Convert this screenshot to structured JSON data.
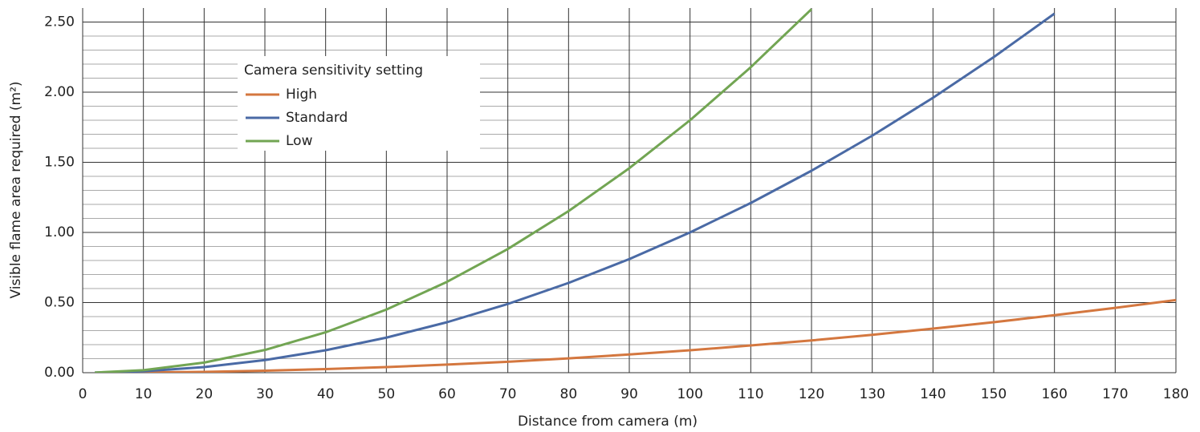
{
  "chart_data": {
    "type": "line",
    "x_label": "Distance from camera (m)",
    "y_label": "Visible flame area required (m²)",
    "legend_title": "Camera sensitivity setting",
    "legend": "upper-left",
    "grid": true,
    "x": [
      2,
      10,
      20,
      30,
      40,
      50,
      60,
      70,
      80,
      90,
      100,
      110,
      120,
      130,
      140,
      150,
      160,
      170,
      180
    ],
    "series": [
      {
        "name": "High",
        "color": "#d4773f",
        "values": [
          0.0001,
          0.002,
          0.006,
          0.014,
          0.026,
          0.04,
          0.058,
          0.078,
          0.102,
          0.13,
          0.16,
          0.194,
          0.23,
          0.27,
          0.314,
          0.36,
          0.41,
          0.462,
          0.518
        ]
      },
      {
        "name": "Standard",
        "color": "#4a6aa5",
        "values": [
          0.0004,
          0.01,
          0.04,
          0.09,
          0.16,
          0.25,
          0.36,
          0.49,
          0.64,
          0.81,
          1.0,
          1.21,
          1.44,
          1.69,
          1.96,
          2.25,
          2.56,
          null,
          null
        ]
      },
      {
        "name": "Low",
        "color": "#72a553",
        "values": [
          0.0007,
          0.018,
          0.072,
          0.162,
          0.288,
          0.45,
          0.648,
          0.882,
          1.152,
          1.458,
          1.8,
          2.178,
          2.592,
          null,
          null,
          null,
          null,
          null,
          null
        ]
      }
    ],
    "xlim": [
      0,
      180
    ],
    "xticks": [
      0,
      10,
      20,
      30,
      40,
      50,
      60,
      70,
      80,
      90,
      100,
      110,
      120,
      130,
      140,
      150,
      160,
      170,
      180
    ],
    "ylim": [
      0,
      2.6
    ],
    "yticks": [
      {
        "value": 0,
        "label": "0.00"
      },
      {
        "value": 0.5,
        "label": "0.50"
      },
      {
        "value": 1,
        "label": "1.00"
      },
      {
        "value": 1.5,
        "label": "1.50"
      },
      {
        "value": 2,
        "label": "2.00"
      },
      {
        "value": 2.5,
        "label": "2.50"
      }
    ]
  }
}
